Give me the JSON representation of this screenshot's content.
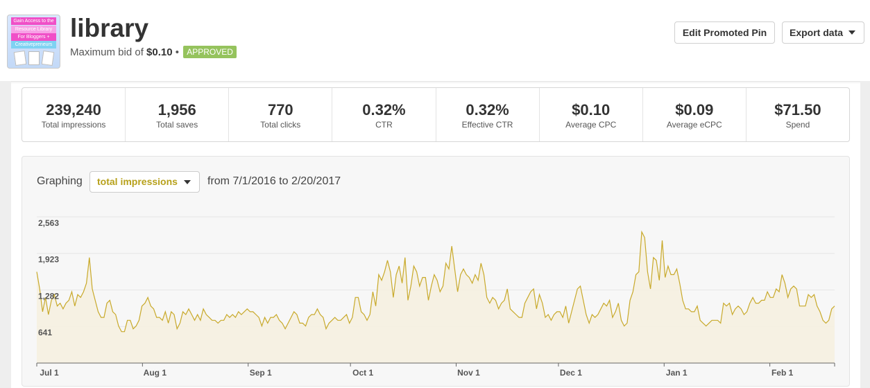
{
  "pin": {
    "title": "library",
    "bid_prefix": "Maximum bid of",
    "bid_value": "$0.10",
    "separator": "•",
    "status": "APPROVED",
    "thumbnail_lines": [
      "Gain Access to the",
      "Resource Library",
      "For Bloggers +",
      "Creativepreneurs"
    ]
  },
  "actions": {
    "edit_label": "Edit Promoted Pin",
    "export_label": "Export data"
  },
  "stats": [
    {
      "value": "239,240",
      "label": "Total impressions"
    },
    {
      "value": "1,956",
      "label": "Total saves"
    },
    {
      "value": "770",
      "label": "Total clicks"
    },
    {
      "value": "0.32%",
      "label": "CTR"
    },
    {
      "value": "0.32%",
      "label": "Effective CTR"
    },
    {
      "value": "$0.10",
      "label": "Average CPC"
    },
    {
      "value": "$0.09",
      "label": "Average eCPC"
    },
    {
      "value": "$71.50",
      "label": "Spend"
    }
  ],
  "graph": {
    "label": "Graphing",
    "metric": "total impressions",
    "range_text": "from 7/1/2016 to 2/20/2017"
  },
  "colors": {
    "line": "#c8a92a",
    "fill": "#f5efe0",
    "metric_text": "#b7a11b",
    "approved": "#95c35d"
  },
  "chart_data": {
    "type": "area",
    "x_start": "2016-07-01",
    "x_end": "2017-02-20",
    "x_ticks": [
      {
        "label": "Jul 1",
        "date": "2016-07-01"
      },
      {
        "label": "Aug 1",
        "date": "2016-08-01"
      },
      {
        "label": "Sep 1",
        "date": "2016-09-01"
      },
      {
        "label": "Oct 1",
        "date": "2016-10-01"
      },
      {
        "label": "Nov 1",
        "date": "2016-11-01"
      },
      {
        "label": "Dec 1",
        "date": "2016-12-01"
      },
      {
        "label": "Jan 1",
        "date": "2017-01-01"
      },
      {
        "label": "Feb 1",
        "date": "2017-02-01"
      }
    ],
    "y_ticks": [
      641,
      1282,
      1923,
      2563
    ],
    "ylim": [
      0,
      2563
    ],
    "grid": true,
    "series": [
      {
        "values": [
          1600,
          1300,
          900,
          1150,
          850,
          1100,
          1200,
          1000,
          1050,
          950,
          1050,
          1100,
          1250,
          1000,
          1200,
          1150,
          1250,
          1400,
          1850,
          1300,
          1100,
          900,
          800,
          800,
          1050,
          1100,
          900,
          850,
          650,
          550,
          550,
          750,
          750,
          600,
          650,
          750,
          1000,
          1050,
          1150,
          1000,
          950,
          800,
          800,
          750,
          900,
          700,
          900,
          850,
          600,
          700,
          900,
          850,
          950,
          850,
          750,
          850,
          750,
          950,
          850,
          800,
          750,
          750,
          700,
          750,
          750,
          850,
          800,
          850,
          800,
          900,
          850,
          900,
          950,
          900,
          900,
          850,
          800,
          650,
          800,
          700,
          800,
          800,
          850,
          750,
          700,
          600,
          700,
          800,
          900,
          850,
          700,
          700,
          650,
          800,
          850,
          850,
          950,
          850,
          800,
          600,
          700,
          750,
          800,
          750,
          750,
          800,
          850,
          700,
          800,
          1150,
          1150,
          900,
          850,
          750,
          850,
          1250,
          1000,
          1550,
          1450,
          1600,
          1800,
          1600,
          1150,
          1550,
          1700,
          1400,
          1850,
          1100,
          1350,
          1700,
          1600,
          1350,
          1500,
          1500,
          1100,
          1350,
          1550,
          1450,
          1250,
          1350,
          1750,
          1650,
          2050,
          1650,
          1250,
          1550,
          1650,
          1550,
          1500,
          1400,
          1550,
          1450,
          1750,
          1550,
          1150,
          1050,
          1150,
          1100,
          950,
          1050,
          1100,
          1300,
          950,
          900,
          850,
          800,
          800,
          1050,
          1150,
          1250,
          1300,
          950,
          1200,
          1050,
          800,
          850,
          750,
          850,
          900,
          900,
          800,
          1000,
          700,
          900,
          1100,
          1300,
          1350,
          1100,
          850,
          700,
          850,
          800,
          850,
          950,
          1050,
          1000,
          1100,
          800,
          900,
          1050,
          750,
          650,
          700,
          1100,
          1250,
          1550,
          1600,
          2300,
          2200,
          1600,
          1300,
          1850,
          1800,
          1450,
          2150,
          1500,
          1700,
          1550,
          1550,
          1650,
          1400,
          1100,
          950,
          950,
          900,
          900,
          1000,
          750,
          700,
          650,
          700,
          750,
          750,
          750,
          700,
          1050,
          1000,
          1050,
          850,
          950,
          1000,
          950,
          850,
          900,
          1050,
          1150,
          1050,
          1050,
          1100,
          1100,
          1250,
          1150,
          1150,
          1300,
          1250,
          1550,
          1400,
          1150,
          1300,
          1350,
          1300,
          1000,
          1000,
          1000,
          1200,
          1150,
          1200,
          1000,
          900,
          750,
          700,
          750,
          950,
          1000
        ]
      }
    ]
  }
}
